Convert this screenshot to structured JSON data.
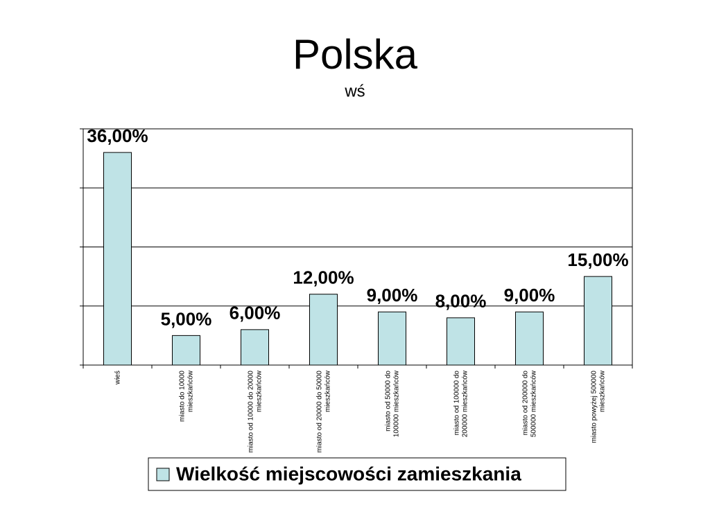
{
  "chart_data": {
    "type": "bar",
    "title": "Polska",
    "subtitle": "wś",
    "categories": [
      "wieś",
      "miasto do 10000 mieszkańców",
      "miasto od 10000 do 20000 mieszkańców",
      "miasto od 20000 do 50000 mieszkańców",
      "miasto od 50000 do 100000 mieszkańców",
      "miasto od 100000 do 200000 mieszkańców",
      "miasto od 200000 do 500000 mieszkańców",
      "miasto powyżej 500000 mieszkańców"
    ],
    "series": [
      {
        "name": "Wielkość miejscowości zamieszkania",
        "color": "#bfe3e6",
        "values": [
          36,
          5,
          6,
          12,
          9,
          8,
          9,
          15
        ],
        "value_labels": [
          "36,00%",
          "5,00%",
          "6,00%",
          "12,00%",
          "9,00%",
          "8,00%",
          "9,00%",
          "15,00%"
        ]
      }
    ],
    "ylim": [
      0,
      40
    ],
    "yticks": [
      0,
      10,
      20,
      30,
      40
    ],
    "grid": true,
    "legend": "bottom"
  }
}
